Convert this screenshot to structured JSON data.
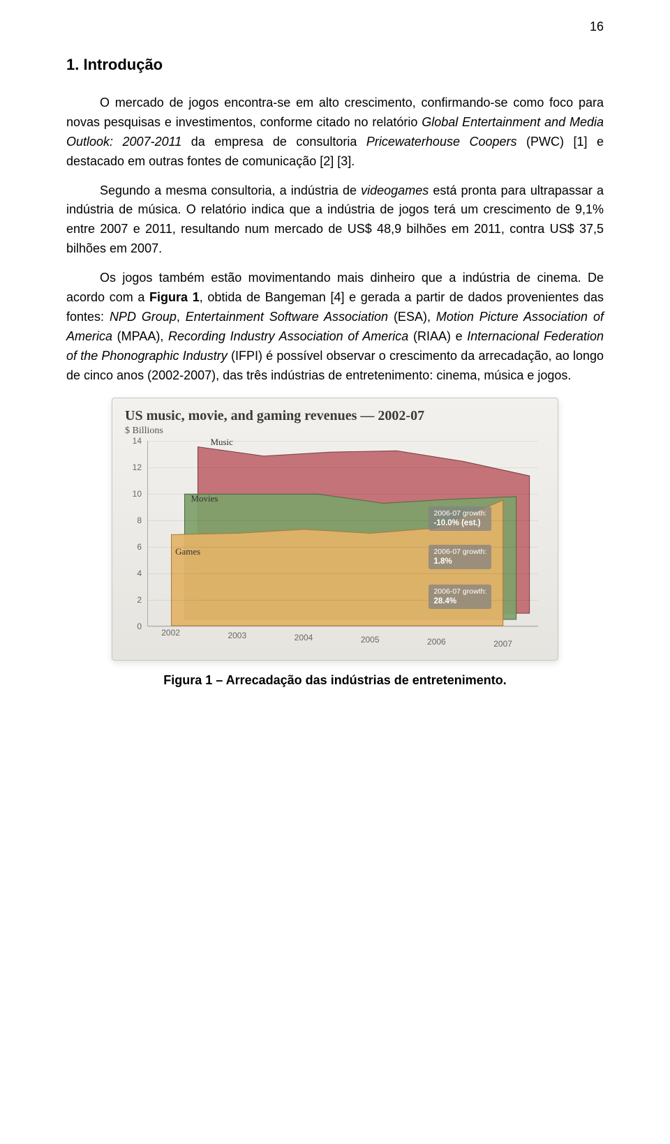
{
  "page_number": "16",
  "heading": "1. Introdução",
  "paragraphs": {
    "p1_a": "O mercado de jogos encontra-se em alto crescimento, confirmando-se como foco para novas pesquisas e investimentos, conforme citado no relatório ",
    "p1_i1": "Global Entertainment and Media Outlook: 2007-2011",
    "p1_b": " da empresa de consultoria ",
    "p1_i2": "Pricewaterhouse Coopers",
    "p1_c": " (PWC) [1] e destacado em outras fontes de comunicação [2] [3].",
    "p2_a": "Segundo a mesma consultoria, a indústria de ",
    "p2_i1": "videogames",
    "p2_b": " está pronta para ultrapassar a indústria de música. O relatório indica que a indústria de jogos terá um crescimento de 9,1% entre 2007 e 2011, resultando num mercado de US$ 48,9 bilhões em 2011, contra US$ 37,5 bilhões em 2007.",
    "p3_a": "Os jogos também estão movimentando mais dinheiro que a indústria de cinema. De acordo com a ",
    "p3_b1": "Figura 1",
    "p3_b": ", obtida de Bangeman [4] e gerada a partir de dados provenientes das fontes: ",
    "p3_i1": "NPD Group",
    "p3_c": ", ",
    "p3_i2": "Entertainment Software Association",
    "p3_d": " (ESA), ",
    "p3_i3": "Motion Picture Association of America",
    "p3_e": " (MPAA), ",
    "p3_i4": "Recording Industry Association of America",
    "p3_f": " (RIAA) e ",
    "p3_i5": "Internacional Federation of the Phonographic Industry",
    "p3_g": " (IFPI) é possível observar o crescimento da arrecadação, ao longo de cinco anos (2002-2007), das três indústrias de entretenimento: cinema, música e jogos."
  },
  "chart": {
    "title": "US music, movie, and gaming revenues — 2002-07",
    "subtitle": "$ Billions",
    "background_gradient": [
      "#f2f1ee",
      "#e6e4df"
    ],
    "grid_color": "rgba(0,0,0,0.07)",
    "ymin": 0,
    "ymax": 14,
    "ytick_step": 2,
    "years": [
      "2002",
      "2003",
      "2004",
      "2005",
      "2006",
      "2007"
    ],
    "x_positions_pct": [
      6,
      23,
      40,
      57,
      74,
      91
    ],
    "series": [
      {
        "name": "Music",
        "label": "Music",
        "color": "#c16a6f",
        "stroke": "#7b3b3f",
        "depth_offset_x": 38,
        "depth_offset_y": -18,
        "label_x_pct": 16,
        "label_y_val": 13.4,
        "values": [
          12.6,
          11.9,
          12.2,
          12.3,
          11.5,
          10.4
        ],
        "annotation": {
          "title": "2006-07 growth:",
          "value": "-10.0% (est.)",
          "x_pct": 72,
          "y_val": 9.1
        }
      },
      {
        "name": "Movies",
        "label": "Movies",
        "color": "#7ea06a",
        "stroke": "#4e6a41",
        "depth_offset_x": 19,
        "depth_offset_y": -9,
        "label_x_pct": 11,
        "label_y_val": 9.6,
        "values": [
          9.5,
          9.5,
          9.5,
          8.8,
          9.1,
          9.3
        ],
        "annotation": {
          "title": "2006-07 growth:",
          "value": "1.8%",
          "x_pct": 72,
          "y_val": 6.2
        }
      },
      {
        "name": "Games",
        "label": "Games",
        "color": "#e3b368",
        "stroke": "#a87a36",
        "depth_offset_x": 0,
        "depth_offset_y": 0,
        "label_x_pct": 7,
        "label_y_val": 6.1,
        "values": [
          6.9,
          7.0,
          7.3,
          7.0,
          7.4,
          9.5
        ],
        "annotation": {
          "title": "2006-07 growth:",
          "value": "28.4%",
          "x_pct": 72,
          "y_val": 3.2
        }
      }
    ]
  },
  "figure_caption": "Figura 1 – Arrecadação das indústrias de entretenimento."
}
